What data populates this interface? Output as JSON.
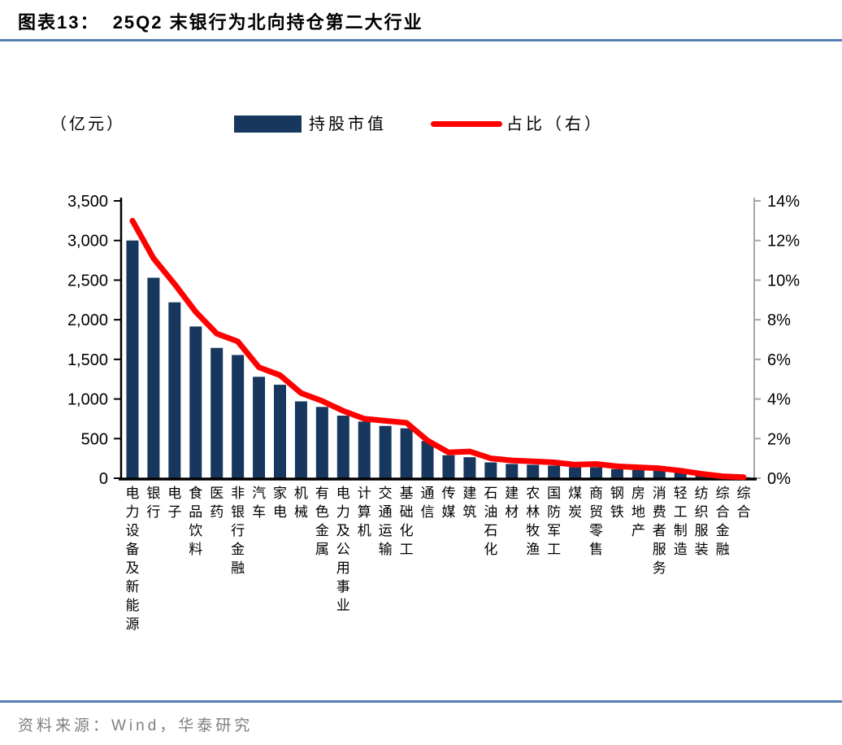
{
  "report": {
    "title": "图表13：  25Q2 末银行为北向持仓第二大行业",
    "source": "资料来源：Wind，华泰研究"
  },
  "legend": {
    "unit_label": "（亿元）",
    "bar_series_label": "持股市值",
    "line_series_label": "占比（右）"
  },
  "colors": {
    "bar": "#17375E",
    "line": "#FF0000",
    "rule_blue": "#5580B3",
    "right_axis": "#A6A6A6",
    "left_axis": "#000000",
    "source_text": "#7F7F7F"
  },
  "chart_data": {
    "type": "bar",
    "subtype": "bar+line dual axis",
    "title": "25Q2 末银行为北向持仓第二大行业",
    "unit": "亿元",
    "legend_position": "top",
    "grid": false,
    "categories": [
      "电力设备及新能源",
      "银行",
      "电子",
      "食品饮料",
      "医药",
      "非银行金融",
      "汽车",
      "家电",
      "机械",
      "有色金属",
      "电力及公用事业",
      "计算机",
      "交通运输",
      "基础化工",
      "通信",
      "传媒",
      "建筑",
      "石油石化",
      "建材",
      "农林牧渔",
      "国防军工",
      "煤炭",
      "商贸零售",
      "钢铁",
      "房地产",
      "消费者服务",
      "轻工制造",
      "纺织服装",
      "综合金融",
      "综合"
    ],
    "series": [
      {
        "name": "持股市值",
        "type": "bar",
        "axis": "left",
        "values": [
          3000,
          2530,
          2220,
          1915,
          1645,
          1555,
          1280,
          1180,
          970,
          900,
          790,
          715,
          660,
          630,
          470,
          290,
          265,
          200,
          180,
          170,
          160,
          140,
          140,
          115,
          105,
          95,
          70,
          45,
          25,
          12
        ]
      },
      {
        "name": "占比（右）",
        "type": "line",
        "axis": "right",
        "values": [
          13.0,
          11.1,
          9.8,
          8.4,
          7.3,
          6.9,
          5.6,
          5.2,
          4.3,
          3.9,
          3.4,
          3.0,
          2.9,
          2.8,
          1.9,
          1.3,
          1.35,
          1.0,
          0.9,
          0.85,
          0.8,
          0.68,
          0.72,
          0.6,
          0.55,
          0.5,
          0.38,
          0.22,
          0.1,
          0.05
        ]
      }
    ],
    "left_axis": {
      "min": 0,
      "max": 3500,
      "ticks": [
        "0",
        "500",
        "1,000",
        "1,500",
        "2,000",
        "2,500",
        "3,000",
        "3,500"
      ]
    },
    "right_axis": {
      "min": 0,
      "max": 14,
      "ticks": [
        "0%",
        "2%",
        "4%",
        "6%",
        "8%",
        "10%",
        "12%",
        "14%"
      ]
    }
  }
}
